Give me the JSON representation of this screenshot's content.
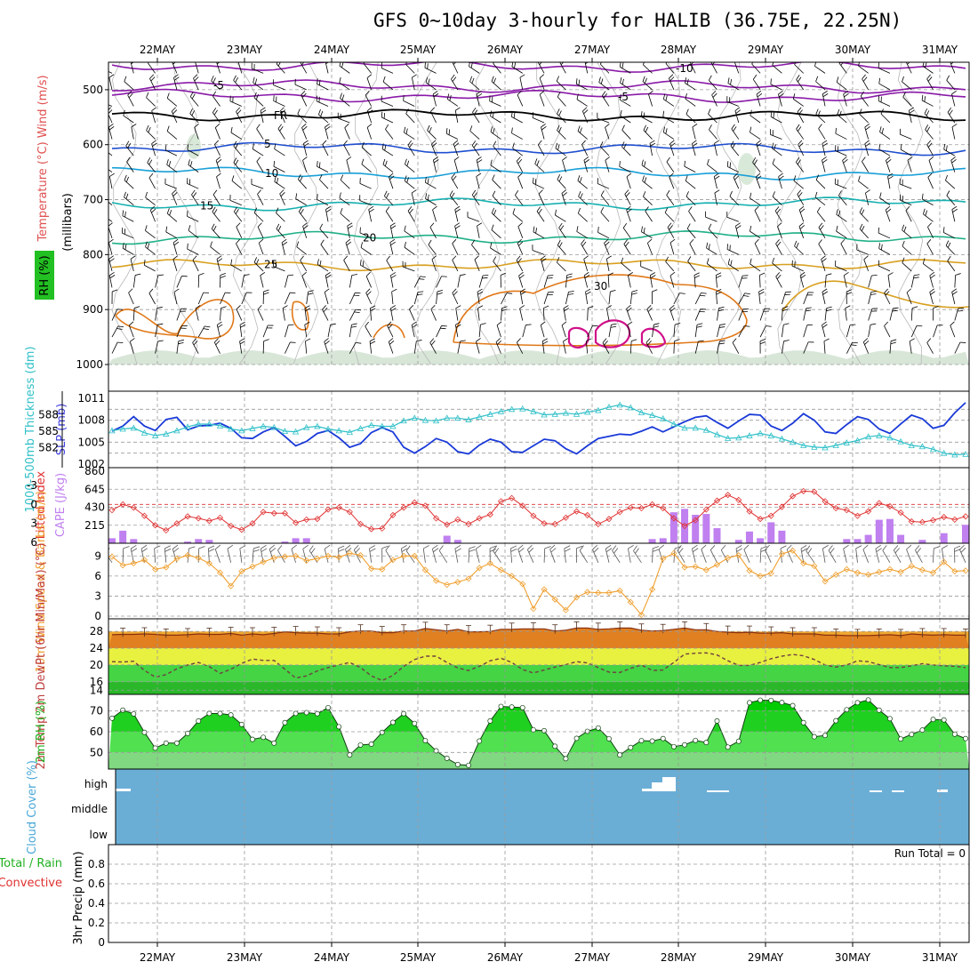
{
  "title": "GFS 0~10day 3-hourly for HALIB (36.75E, 22.25N)",
  "colors": {
    "contour_minus10": "#8a1aa8",
    "contour_minus5": "#8a1aa8",
    "contour_fr": "#000000",
    "contour_5": "#1f4fd0",
    "contour_10": "#1aa0d8",
    "contour_15": "#18b0b0",
    "contour_20": "#20b088",
    "contour_25": "#d8a020",
    "contour_30": "#e07818",
    "contour_35": "#d0108a",
    "slp": "#1a3ad8",
    "thickness": "#30c0c8",
    "lifted": "#e03030",
    "cape": "#c080f0",
    "wind": "#f0a030",
    "temp_fill": "#e08020",
    "dewpt": "#704040",
    "rh_fill": "#20d020",
    "cloud": "#6aaed6",
    "label_rh_bg": "#22c022"
  },
  "chart_data": [
    {
      "type": "line",
      "panel": "upper-air",
      "ylabel": "Temperature (°C) Wind (m/s)",
      "ylabel2": "(millibars)",
      "rh_label": "RH (%)",
      "ylim": [
        1000,
        450
      ],
      "yticks": [
        "500",
        "600",
        "700",
        "800",
        "900",
        "1000"
      ],
      "xticks": [
        "22MAY",
        "23MAY",
        "24MAY",
        "25MAY",
        "26MAY",
        "27MAY",
        "28MAY",
        "29MAY",
        "30MAY",
        "31MAY"
      ],
      "contour_labels": [
        {
          "text": "-10",
          "level": -10
        },
        {
          "text": "-5",
          "level": -5
        },
        {
          "text": "FR",
          "level": 0
        },
        {
          "text": "5",
          "level": 5
        },
        {
          "text": "10",
          "level": 10
        },
        {
          "text": "15",
          "level": 15
        },
        {
          "text": "20",
          "level": 20
        },
        {
          "text": "25",
          "level": 25
        },
        {
          "text": "30",
          "level": 30
        }
      ]
    },
    {
      "type": "line",
      "panel": "slp-thickness",
      "ylabel_left": "1000-500mb Thickness (dm)",
      "ylabel_right": "SLP (mb)",
      "thickness_ticks": [
        "588",
        "585",
        "582"
      ],
      "slp_ticks": [
        "1011",
        "1008",
        "1005",
        "1002"
      ],
      "slp_range": [
        1002,
        1011
      ],
      "thickness_range": [
        579,
        591
      ],
      "series": [
        {
          "name": "SLP (mb)",
          "values": [
            1006.5,
            1007.2,
            1008.5,
            1007.2,
            1006.6,
            1008.1,
            1008.4,
            1006.7,
            1007.2,
            1007.3,
            1007.6,
            1006.9,
            1005.6,
            1005.5,
            1006.4,
            1007.0,
            1005.8,
            1004.5,
            1005.1,
            1006.2,
            1006.6,
            1005.6,
            1004.3,
            1004.8,
            1006.3,
            1007.0,
            1006.4,
            1004.3,
            1003.5,
            1004.4,
            1005.5,
            1005.0,
            1003.7,
            1003.4,
            1004.6,
            1005.4,
            1005.0,
            1003.7,
            1003.6,
            1004.5,
            1005.4,
            1005.2,
            1004.1,
            1003.4,
            1004.5,
            1005.5,
            1005.8,
            1006.1,
            1006.0,
            1006.5,
            1007.1,
            1006.4,
            1007.1,
            1007.8,
            1008.4,
            1008.6,
            1007.7,
            1006.9,
            1007.9,
            1008.8,
            1008.7,
            1007.2,
            1006.6,
            1007.6,
            1008.9,
            1008.0,
            1006.4,
            1006.2,
            1007.4,
            1008.5,
            1008.1,
            1006.8,
            1006.2,
            1007.5,
            1008.7,
            1008.2,
            1006.9,
            1007.3,
            1009.0,
            1010.4
          ]
        },
        {
          "name": "1000-500mb Thickness (dm)",
          "values": [
            585.1,
            585.4,
            585.6,
            584.7,
            584.2,
            584.5,
            585.1,
            585.8,
            586.3,
            586.3,
            586.0,
            585.4,
            585.1,
            585.5,
            585.9,
            585.7,
            585.0,
            584.9,
            585.7,
            585.9,
            585.4,
            585.1,
            584.8,
            585.5,
            586.1,
            585.9,
            585.9,
            586.9,
            587.4,
            587.0,
            586.9,
            587.4,
            587.4,
            587.1,
            587.6,
            588.1,
            588.6,
            589.0,
            589.1,
            588.6,
            588.0,
            588.1,
            588.3,
            588.1,
            588.5,
            588.8,
            589.4,
            589.8,
            589.3,
            588.4,
            587.9,
            587.3,
            586.3,
            585.6,
            585.6,
            585.2,
            584.4,
            583.7,
            583.8,
            584.2,
            584.6,
            584.2,
            583.6,
            583.0,
            582.4,
            582.1,
            582.0,
            582.4,
            582.9,
            583.3,
            584.0,
            584.2,
            583.8,
            583.1,
            582.4,
            582.2,
            581.7,
            581.0,
            580.7,
            580.8
          ]
        }
      ]
    },
    {
      "type": "bar",
      "panel": "cape-lifted",
      "ylabel_left": "Lifted Index",
      "ylabel_right": "CAPE (J/kg)",
      "lifted_ticks": [
        "-3",
        "0",
        "3",
        "6"
      ],
      "cape_ticks": [
        "860",
        "645",
        "430",
        "215"
      ],
      "cape_range": [
        0,
        860
      ],
      "lifted_range": [
        -6,
        6
      ],
      "series": [
        {
          "name": "CAPE (J/kg)",
          "values": [
            60,
            150,
            50,
            0,
            0,
            0,
            0,
            20,
            50,
            40,
            0,
            0,
            0,
            0,
            0,
            0,
            20,
            60,
            60,
            0,
            0,
            0,
            0,
            0,
            0,
            0,
            0,
            0,
            0,
            0,
            0,
            90,
            40,
            0,
            0,
            0,
            0,
            0,
            0,
            0,
            0,
            0,
            0,
            0,
            0,
            0,
            0,
            0,
            0,
            0,
            50,
            60,
            370,
            410,
            340,
            350,
            180,
            0,
            40,
            140,
            60,
            250,
            150,
            0,
            0,
            0,
            0,
            0,
            50,
            50,
            100,
            280,
            290,
            100,
            0,
            40,
            0,
            120,
            0,
            220
          ]
        },
        {
          "name": "Lifted Index",
          "values": [
            0.9,
            0.0,
            0.5,
            1.8,
            3.3,
            4.1,
            3.0,
            1.9,
            2.2,
            2.6,
            2.1,
            3.4,
            4.0,
            3.0,
            1.2,
            1.4,
            1.4,
            2.9,
            2.4,
            2.3,
            0.8,
            0.5,
            1.2,
            3.1,
            3.9,
            3.8,
            1.7,
            0.5,
            -0.3,
            0.2,
            2.2,
            3.2,
            2.4,
            3.1,
            2.2,
            1.6,
            -0.5,
            -1.0,
            0.2,
            1.8,
            3.0,
            3.1,
            2.1,
            1.1,
            1.7,
            3.1,
            2.3,
            1.2,
            0.5,
            0.6,
            0.0,
            0.6,
            2.2,
            3.4,
            2.5,
            0.8,
            -0.6,
            -1.5,
            -0.7,
            1.1,
            2.3,
            1.8,
            0.4,
            -1.3,
            -2.1,
            -2.0,
            -0.5,
            0.6,
            0.9,
            1.8,
            1.1,
            -0.2,
            0.3,
            1.3,
            2.7,
            2.8,
            2.5,
            2.0,
            2.4,
            1.9
          ]
        }
      ]
    },
    {
      "type": "line",
      "panel": "wind-10m",
      "ylabel": "10m Wind Speed & Barbs (m/s)",
      "yticks": [
        "9",
        "6",
        "3",
        "0"
      ],
      "ylim": [
        0,
        10.5
      ],
      "series": [
        {
          "name": "10m Wind Speed",
          "values": [
            8.9,
            7.6,
            7.9,
            8.4,
            7.0,
            7.3,
            8.6,
            9.1,
            8.7,
            7.9,
            6.5,
            4.5,
            6.7,
            7.4,
            8.1,
            8.7,
            8.9,
            9.0,
            8.3,
            8.6,
            9.0,
            8.8,
            9.4,
            9.1,
            7.1,
            7.0,
            8.4,
            9.0,
            9.0,
            6.9,
            5.3,
            4.7,
            5.1,
            5.6,
            7.2,
            7.9,
            6.9,
            6.0,
            4.8,
            1.1,
            4.0,
            2.5,
            0.9,
            2.8,
            3.6,
            3.5,
            3.5,
            3.8,
            2.1,
            0.2,
            4.0,
            8.6,
            9.4,
            7.3,
            7.4,
            6.9,
            7.7,
            8.7,
            9.1,
            6.8,
            6.0,
            6.4,
            9.3,
            9.8,
            7.9,
            7.5,
            5.2,
            6.2,
            7.0,
            6.5,
            6.2,
            6.6,
            7.0,
            6.6,
            7.5,
            6.9,
            6.5,
            8.1,
            6.7,
            6.8
          ]
        }
      ]
    },
    {
      "type": "area",
      "panel": "temp-dewpt",
      "ylabel": "2m Temp 2m DewPt (6hr Min/Max) (°C)",
      "yticks": [
        "28",
        "24",
        "20",
        "16",
        "14"
      ],
      "ylim": [
        13,
        31
      ],
      "series": [
        {
          "name": "2m Temp",
          "values": [
            27.2,
            27.3,
            27.3,
            27.4,
            27.3,
            27.1,
            27.1,
            27.2,
            27.4,
            27.3,
            27.3,
            27.5,
            27.1,
            27.4,
            27.2,
            27.5,
            27.9,
            27.7,
            27.6,
            27.6,
            27.4,
            27.4,
            27.9,
            28.1,
            28.1,
            27.7,
            27.7,
            28.1,
            28.1,
            28.7,
            28.4,
            28.1,
            28.5,
            27.9,
            27.9,
            28.0,
            28.5,
            28.5,
            28.6,
            28.6,
            28.6,
            28.1,
            28.3,
            28.8,
            28.8,
            28.5,
            28.6,
            28.8,
            28.8,
            28.3,
            28.1,
            28.2,
            28.5,
            28.8,
            28.4,
            28.4,
            28.0,
            27.8,
            27.7,
            27.8,
            27.6,
            27.6,
            27.7,
            27.4,
            27.4,
            27.4,
            27.1,
            27.1,
            27.0,
            27.0,
            27.0,
            27.1,
            27.2,
            27.0,
            27.4,
            27.2,
            27.1,
            27.2,
            27.1,
            27.1
          ]
        },
        {
          "name": "2m DewPt",
          "values": [
            20.8,
            20.7,
            20.9,
            18.7,
            17.1,
            17.7,
            19.1,
            20.0,
            20.6,
            19.6,
            18.0,
            19.0,
            20.4,
            21.4,
            21.1,
            21.1,
            19.0,
            16.9,
            17.4,
            18.6,
            19.4,
            20.0,
            20.6,
            19.4,
            17.4,
            16.3,
            17.5,
            19.7,
            21.3,
            22.1,
            22.1,
            20.6,
            19.3,
            18.7,
            19.7,
            21.0,
            21.6,
            20.6,
            18.9,
            18.1,
            18.8,
            19.5,
            20.1,
            20.8,
            20.5,
            19.4,
            18.3,
            18.2,
            19.2,
            20.0,
            18.7,
            18.8,
            20.6,
            22.6,
            22.8,
            22.9,
            22.4,
            21.0,
            19.9,
            19.9,
            20.6,
            21.5,
            22.1,
            22.5,
            22.2,
            21.3,
            20.0,
            19.5,
            20.0,
            21.0,
            20.8,
            20.1,
            19.4,
            19.4,
            19.8,
            20.3,
            20.0,
            19.8,
            19.7,
            19.4
          ]
        }
      ]
    },
    {
      "type": "area",
      "panel": "rh-2m",
      "ylabel": "2m RH (%)",
      "yticks": [
        "70",
        "60",
        "50"
      ],
      "ylim": [
        42,
        78
      ],
      "series": [
        {
          "name": "2m RH",
          "values": [
            66.5,
            70.4,
            68.6,
            59.7,
            52.1,
            54.5,
            54.5,
            59.2,
            65.2,
            68.8,
            68.8,
            68.1,
            63.5,
            56.3,
            57.3,
            54.5,
            64.4,
            68.8,
            69.2,
            68.7,
            71.6,
            62.4,
            48.8,
            53.6,
            54.0,
            59.7,
            64.5,
            68.7,
            64.0,
            55.7,
            50.8,
            47.2,
            44.2,
            43.8,
            55.5,
            65.2,
            72.2,
            71.9,
            71.6,
            60.9,
            60.5,
            53.0,
            47.0,
            56.8,
            60.2,
            61.8,
            56.6,
            48.8,
            52.4,
            55.7,
            55.5,
            56.7,
            52.8,
            53.7,
            55.8,
            54.8,
            65.2,
            52.6,
            55.4,
            74.0,
            75.2,
            75.1,
            74.1,
            72.6,
            64.4,
            57.6,
            58.2,
            65.3,
            70.6,
            74.0,
            75.3,
            70.4,
            66.3,
            56.5,
            58.7,
            60.8,
            65.9,
            65.7,
            58.8,
            56.7
          ]
        }
      ]
    },
    {
      "type": "bar",
      "panel": "cloud-cover",
      "ylabel": "Cloud Cover (%)",
      "levels": [
        "high",
        "middle",
        "low"
      ]
    },
    {
      "type": "bar",
      "panel": "precip",
      "ylabel": "3hr Precip (mm)",
      "ylabel_total": "Total / Rain",
      "ylabel_conv": "Convective",
      "run_total": "Run Total = 0",
      "yticks": [
        "0.8",
        "0.6",
        "0.4",
        "0.2",
        "0"
      ],
      "ylim": [
        0,
        1.0
      ],
      "values": []
    }
  ]
}
